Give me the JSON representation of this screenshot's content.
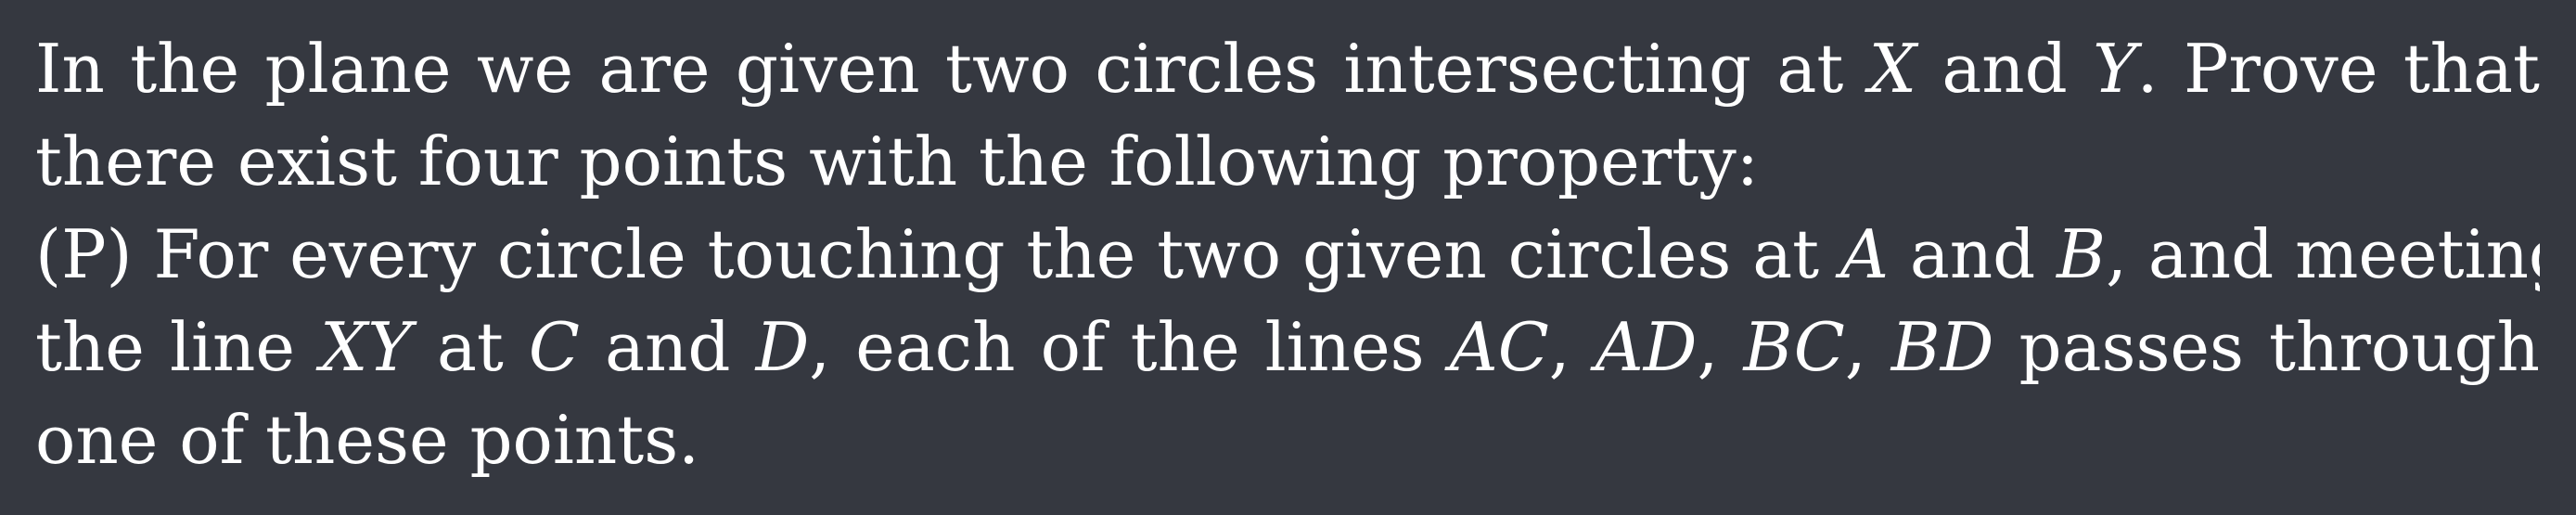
{
  "problem": {
    "line1": {
      "before_X": "In the plane we are given two circles intersecting at ",
      "X": "X",
      "between_X_Y": " and ",
      "Y": "Y",
      "after_Y": ". Prove that"
    },
    "line2": {
      "text": "there exist four points with the following property:"
    },
    "line3": {
      "before_A": "(P) For every circle touching the two given circles at ",
      "A": "A",
      "between_A_B": " and ",
      "B": "B",
      "after_B": ", and meeting"
    },
    "line4": {
      "before_XY": "the line ",
      "XY": "XY",
      "between_XY_C": " at ",
      "C": "C",
      "between_C_D": " and ",
      "D": "D",
      "between_D_AC": ", each of the lines ",
      "AC": "AC",
      "sep1": ", ",
      "AD": "AD",
      "sep2": ", ",
      "BC": "BC",
      "sep3": ", ",
      "BD": "BD",
      "after_BD": " passes through"
    },
    "line5": {
      "text": "one of these points."
    }
  }
}
